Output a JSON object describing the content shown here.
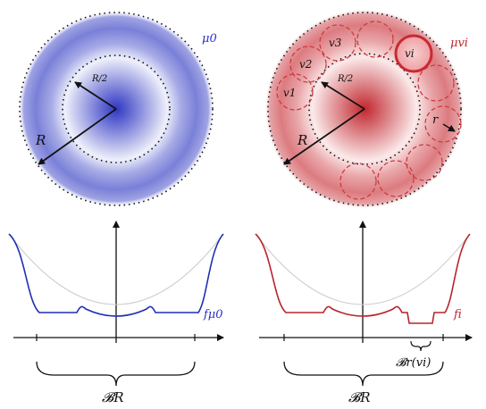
{
  "panels": {
    "left": {
      "measure_label": "μ0",
      "radius_label": "R",
      "half_radius_label": "R/2",
      "curve_label": "fμ0",
      "interval_label": "𝓑R",
      "colors": {
        "fill": "#3a43c6",
        "curve": "#1f2fb5"
      }
    },
    "right": {
      "measure_label": "μvi",
      "radius_label": "R",
      "half_radius_label": "R/2",
      "small_radius_label": "r",
      "balls": [
        "v1",
        "v2",
        "v3",
        "vi"
      ],
      "curve_label": "fi",
      "interval_label": "𝓑R",
      "small_interval_label": "𝓑r(vi)",
      "colors": {
        "fill": "#c4272e",
        "curve": "#b8232a"
      }
    }
  }
}
